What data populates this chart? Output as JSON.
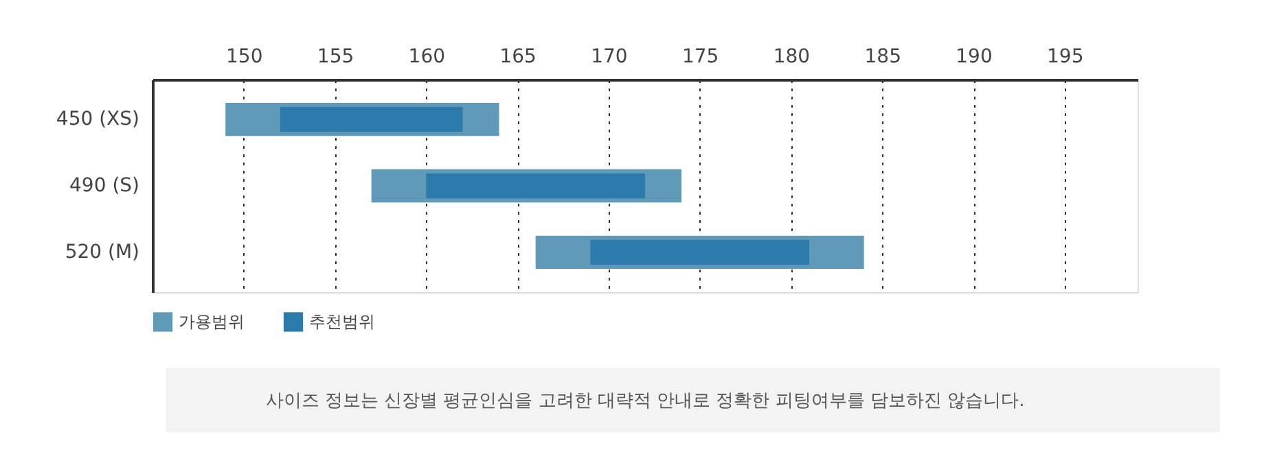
{
  "chart_data": {
    "type": "bar",
    "orientation": "horizontal",
    "categories": [
      "450 (XS)",
      "490 (S)",
      "520 (M)"
    ],
    "series": [
      {
        "name": "가용범위",
        "color": "#5f9ab8",
        "base": [
          149,
          157,
          166
        ],
        "values": [
          15,
          17,
          18
        ]
      },
      {
        "name": "추천범위",
        "color": "#2a7aab",
        "base": [
          152,
          160,
          169
        ],
        "values": [
          10,
          12,
          12
        ]
      }
    ],
    "xlim": [
      145,
      199
    ],
    "xticks": [
      150,
      155,
      160,
      165,
      170,
      175,
      180,
      185,
      190,
      195
    ],
    "grid": "x",
    "legend": "bottom left",
    "annotations": [
      "사이즈 정보는 신장별 평균인심을 고려한 대략적 안내로 정확한 피팅여부를 담보하진 않습니다."
    ]
  }
}
